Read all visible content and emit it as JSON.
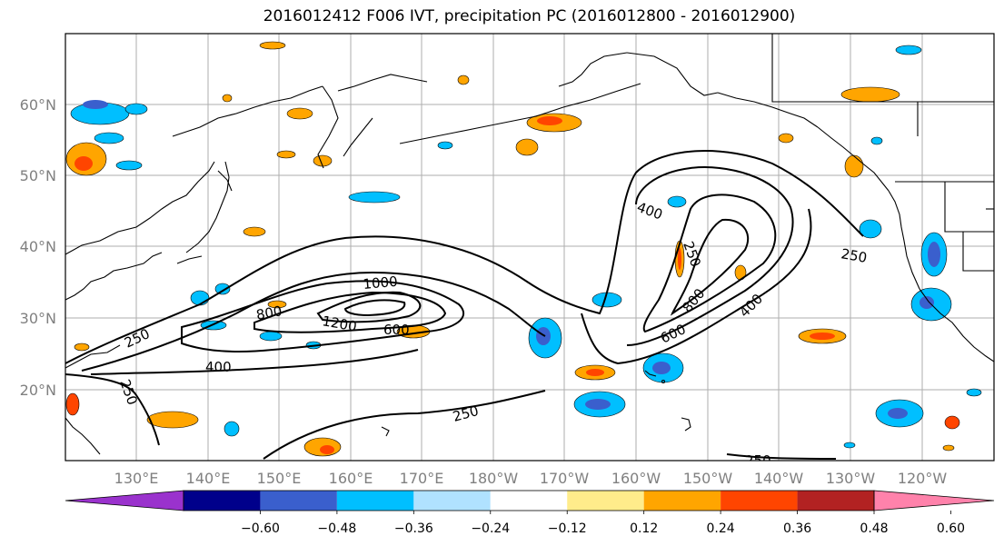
{
  "title": "2016012412 F006 IVT, precipitation PC (2016012800 - 2016012900)",
  "lat_labels": [
    "60°N",
    "50°N",
    "40°N",
    "30°N",
    "20°N"
  ],
  "lon_labels": [
    "130°E",
    "140°E",
    "150°E",
    "160°E",
    "170°E",
    "180°W",
    "170°W",
    "160°W",
    "150°W",
    "140°W",
    "130°W",
    "120°W"
  ],
  "contour_labels": [
    "250",
    "400",
    "600",
    "800",
    "1000",
    "1200",
    "250",
    "400",
    "600",
    "800",
    "400",
    "250",
    "250",
    "250",
    "250"
  ],
  "colorbar": {
    "colors": [
      "#9a32cd",
      "#00008b",
      "#3a5fcd",
      "#00bfff",
      "#b0e2ff",
      "#ffffff",
      "#ffec8b",
      "#ffa500",
      "#ff4500",
      "#b22222",
      "#ff82ab"
    ],
    "tick_labels": [
      "−0.60",
      "−0.48",
      "−0.36",
      "−0.24",
      "−0.12",
      "0.12",
      "0.24",
      "0.36",
      "0.48",
      "0.60"
    ]
  },
  "colors": {
    "grid": "#999999",
    "tick_label": "#808080",
    "contour": "#000000"
  }
}
